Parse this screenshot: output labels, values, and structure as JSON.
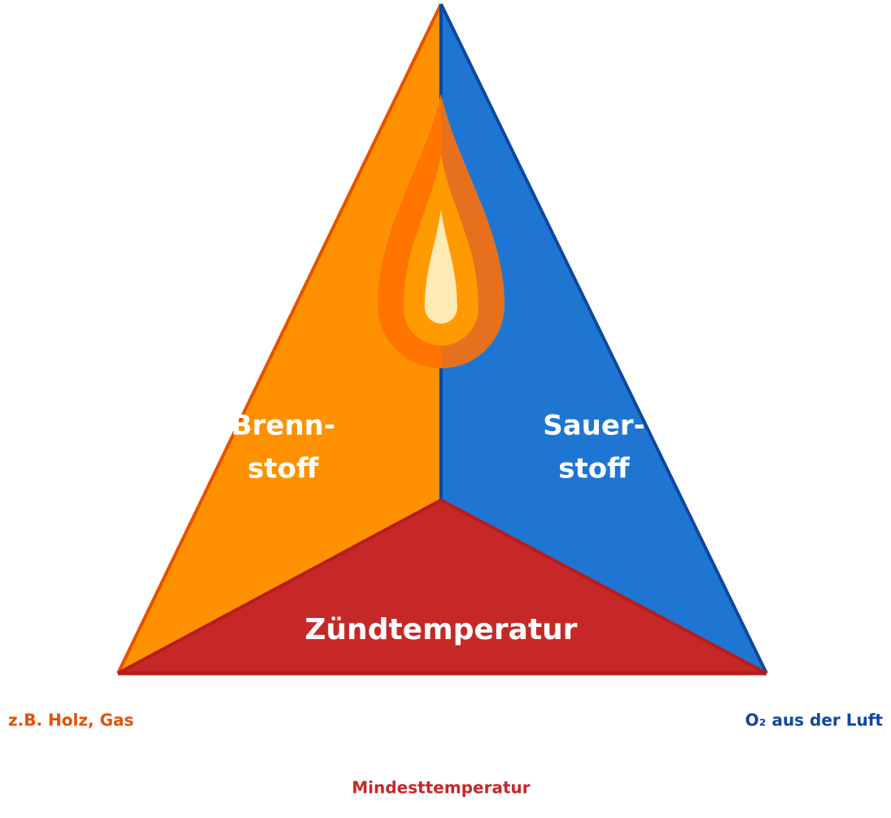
{
  "triangle": {
    "fuel": {
      "label_lines": [
        "Brenn-",
        "stoff"
      ],
      "note": "z.B. Holz, Gas"
    },
    "oxygen": {
      "label_lines": [
        "Sauer-",
        "stoff"
      ],
      "note": "O₂ aus der Luft"
    },
    "heat": {
      "label": "Zündtemperatur",
      "note": "Mindesttemperatur"
    }
  }
}
